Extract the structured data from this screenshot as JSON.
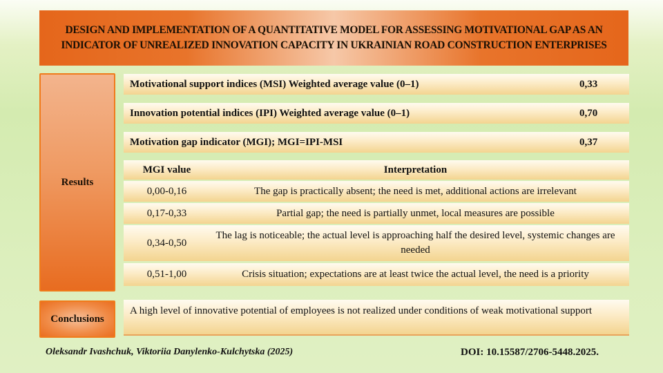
{
  "title": "DESIGN AND IMPLEMENTATION OF A QUANTITATIVE MODEL FOR ASSESSING MOTIVATIONAL GAP AS AN INDICATOR OF UNREALIZED INNOVATION CAPACITY IN UKRAINIAN ROAD CONSTRUCTION ENTERPRISES",
  "sections": {
    "results_label": "Results",
    "conclusions_label": "Conclusions"
  },
  "metrics": [
    {
      "label": "Motivational support indices (MSI) Weighted average value (0–1)",
      "value": "0,33"
    },
    {
      "label": "Innovation potential indices (IPI) Weighted average value (0–1)",
      "value": "0,70"
    },
    {
      "label": "Motivation gap indicator (MGI); MGI=IPI-MSI",
      "value": "0,37"
    }
  ],
  "interpretation_table": {
    "headers": [
      "MGI value",
      "Interpretation"
    ],
    "rows": [
      {
        "range": "0,00-0,16",
        "text": "The gap is practically absent; the need is met, additional actions are irrelevant"
      },
      {
        "range": "0,17-0,33",
        "text": "Partial gap; the need is partially unmet, local measures are possible"
      },
      {
        "range": "0,34-0,50",
        "text": "The lag is noticeable; the actual level is approaching half the desired level, systemic changes are needed"
      },
      {
        "range": "0,51-1,00",
        "text": "Crisis situation; expectations are at least twice the actual level, the need is a priority"
      }
    ]
  },
  "conclusion": "A high level of innovative potential of employees is not realized under conditions of weak motivational support",
  "footer": {
    "authors": "Oleksandr Ivashchuk,  Viktoriia Danylenko-Kulchytska  (2025)",
    "doi": "DOI:  10.15587/2706-5448.2025."
  },
  "colors": {
    "accent_orange": "#e5661b",
    "background_green": "#d4ebb0",
    "bar_gold": "#f3d48f"
  }
}
